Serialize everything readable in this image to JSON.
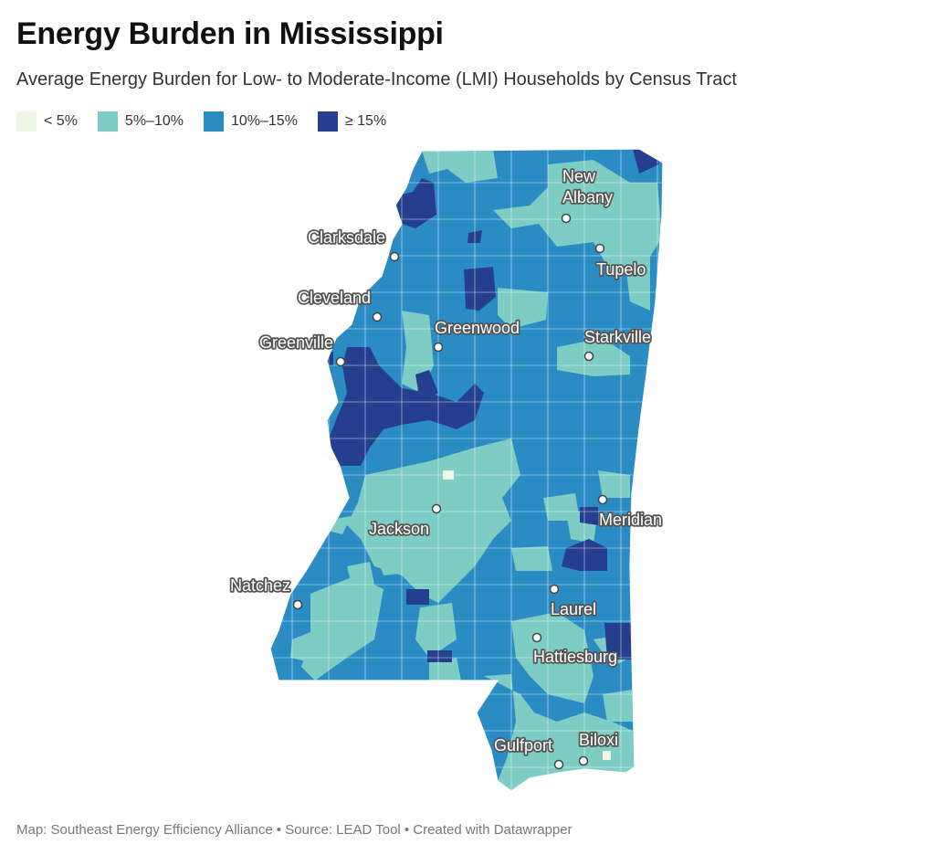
{
  "title": "Energy Burden in Mississippi",
  "subtitle": "Average Energy Burden for Low- to Moderate-Income (LMI) Households by Census Tract",
  "legend": [
    {
      "label": "< 5%",
      "color": "#eef7e5"
    },
    {
      "label": "5%–10%",
      "color": "#7ecdc4"
    },
    {
      "label": "10%–15%",
      "color": "#2b8cc4"
    },
    {
      "label": "≥ 15%",
      "color": "#253f8e"
    }
  ],
  "cities": {
    "new_albany": [
      "New",
      "Albany"
    ],
    "clarksdale": "Clarksdale",
    "tupelo": "Tupelo",
    "cleveland": "Cleveland",
    "greenwood": "Greenwood",
    "starkville": "Starkville",
    "greenville": "Greenville",
    "jackson": "Jackson",
    "meridian": "Meridian",
    "natchez": "Natchez",
    "laurel": "Laurel",
    "hattiesburg": "Hattiesburg",
    "gulfport": "Gulfport",
    "biloxi": "Biloxi"
  },
  "footer": "Map: Southeast Energy Efficiency Alliance • Source: LEAD Tool • Created with Datawrapper"
}
